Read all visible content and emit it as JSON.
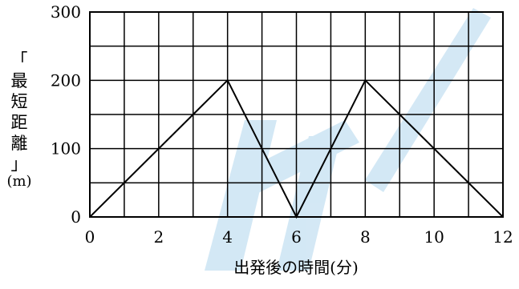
{
  "chart_data": {
    "type": "line",
    "xlabel": "出発後の時間(分)",
    "ylabel_lines": [
      "「",
      "最",
      "短",
      "距",
      "離",
      "」",
      "(m)"
    ],
    "xlim": [
      0,
      12
    ],
    "ylim": [
      0,
      300
    ],
    "x_ticks": [
      0,
      2,
      4,
      6,
      8,
      10,
      12
    ],
    "y_ticks": [
      0,
      100,
      200,
      300
    ],
    "grid": {
      "x_step": 1,
      "y_step": 50,
      "shown": true
    },
    "series": [
      {
        "x": [
          0,
          4,
          6,
          8,
          12
        ],
        "y": [
          0,
          200,
          0,
          200,
          0
        ]
      }
    ],
    "watermark_color": "#cfe6f4"
  }
}
